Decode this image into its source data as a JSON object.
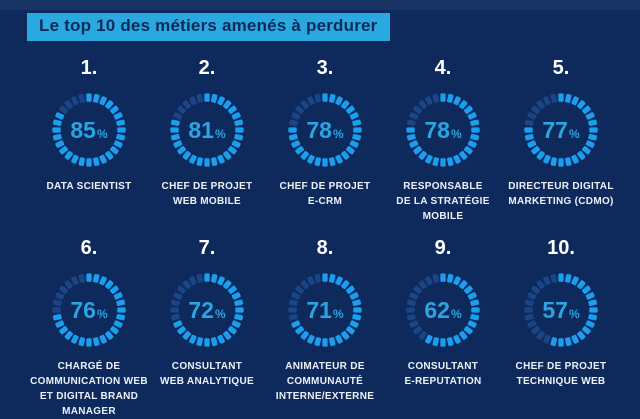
{
  "title": "Le top 10 des métiers amenés à perdurer",
  "unit": "%",
  "colors": {
    "background": "#0e2a5c",
    "banner_background": "#29a9e0",
    "banner_text": "#0d2a5a",
    "gauge_filled": "#1a9ff0",
    "gauge_empty": "#1c4586",
    "value_text": "#2ba4e2",
    "label_text": "#edf2f9",
    "rank_text": "#ffffff"
  },
  "chart_data": {
    "type": "gauge",
    "title": "Le top 10 des métiers amenés à perdurer",
    "unit": "%",
    "value_range": [
      0,
      100
    ],
    "layout": "2 rows x 5 columns of segmented ring gauges, fill starts at 12 o'clock clockwise",
    "items": [
      {
        "rank": "1.",
        "value": 85,
        "label": "DATA SCIENTIST"
      },
      {
        "rank": "2.",
        "value": 81,
        "label": "CHEF DE PROJET\nWEB MOBILE"
      },
      {
        "rank": "3.",
        "value": 78,
        "label": "CHEF DE PROJET\nE-CRM"
      },
      {
        "rank": "4.",
        "value": 78,
        "label": "RESPONSABLE\nDE LA STRATÉGIE\nMOBILE"
      },
      {
        "rank": "5.",
        "value": 77,
        "label": "DIRECTEUR DIGITAL\nMARKETING (CDMO)"
      },
      {
        "rank": "6.",
        "value": 76,
        "label": "CHARGÉ DE\nCOMMUNICATION WEB\nET DIGITAL BRAND\nMANAGER"
      },
      {
        "rank": "7.",
        "value": 72,
        "label": "CONSULTANT\nWEB ANALYTIQUE"
      },
      {
        "rank": "8.",
        "value": 71,
        "label": "ANIMATEUR DE\nCOMMUNAUTÉ\nINTERNE/EXTERNE"
      },
      {
        "rank": "9.",
        "value": 62,
        "label": "CONSULTANT\nE-REPUTATION"
      },
      {
        "rank": "10.",
        "value": 57,
        "label": "CHEF DE PROJET\nTECHNIQUE WEB"
      }
    ]
  }
}
